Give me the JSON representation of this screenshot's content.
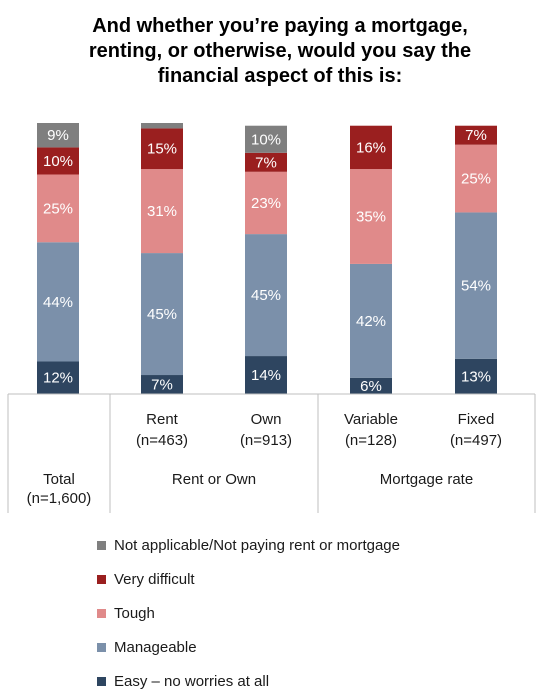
{
  "chart_data": {
    "type": "bar",
    "stacked": true,
    "title_lines": [
      "And whether you’re paying a mortgage,",
      "renting, or otherwise, would you say the",
      "financial aspect of this is:"
    ],
    "categories": [
      {
        "group": "",
        "line1": "",
        "line2": ""
      },
      {
        "group": "Rent or Own",
        "line1": "Rent",
        "line2": "(n=463)"
      },
      {
        "group": "Rent or Own",
        "line1": "Own",
        "line2": "(n=913)"
      },
      {
        "group": "Mortgage rate",
        "line1": "Variable",
        "line2": "(n=128)"
      },
      {
        "group": "Mortgage rate",
        "line1": "Fixed",
        "line2": "(n=497)"
      }
    ],
    "groups": [
      {
        "label_line1": "Total",
        "label_line2": "(n=1,600)"
      },
      {
        "label_line1": "Rent or Own",
        "label_line2": ""
      },
      {
        "label_line1": "Mortgage rate",
        "label_line2": ""
      }
    ],
    "series": [
      {
        "name": "Easy – no worries at all",
        "color": "#2e4560",
        "values": [
          12,
          7,
          14,
          6,
          13
        ]
      },
      {
        "name": "Manageable",
        "color": "#7b90aa",
        "values": [
          44,
          45,
          45,
          42,
          54
        ]
      },
      {
        "name": "Tough",
        "color": "#e08a8a",
        "values": [
          25,
          31,
          23,
          35,
          25
        ]
      },
      {
        "name": "Very difficult",
        "color": "#9a1f1f",
        "values": [
          10,
          15,
          7,
          16,
          7
        ]
      },
      {
        "name": "Not applicable/Not paying rent or mortgage",
        "color": "#7f7f7f",
        "values": [
          9,
          2,
          10,
          0,
          0
        ]
      }
    ],
    "value_labels_hidden_below": 3,
    "value_suffix": "%",
    "legend_order": [
      4,
      3,
      2,
      1,
      0
    ],
    "legend_position": "bottom"
  }
}
